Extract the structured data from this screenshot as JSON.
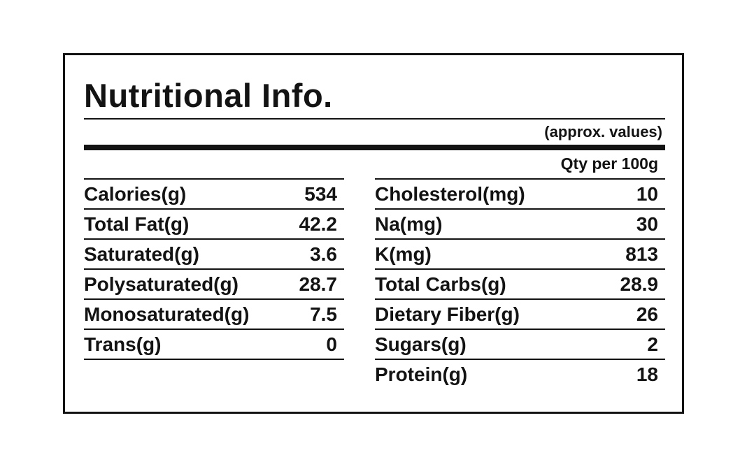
{
  "label": {
    "title": "Nutritional Info.",
    "approx_note": "(approx. values)",
    "qty_header": "Qty per 100g",
    "columns": {
      "left": [
        {
          "name": "Calories(g)",
          "value": "534"
        },
        {
          "name": "Total Fat(g)",
          "value": "42.2"
        },
        {
          "name": "Saturated(g)",
          "value": "3.6"
        },
        {
          "name": "Polysaturated(g)",
          "value": "28.7"
        },
        {
          "name": "Monosaturated(g)",
          "value": "7.5"
        },
        {
          "name": "Trans(g)",
          "value": "0"
        }
      ],
      "right": [
        {
          "name": "Cholesterol(mg)",
          "value": "10"
        },
        {
          "name": "Na(mg)",
          "value": "30"
        },
        {
          "name": "K(mg)",
          "value": "813"
        },
        {
          "name": "Total Carbs(g)",
          "value": "28.9"
        },
        {
          "name": "Dietary Fiber(g)",
          "value": "26"
        },
        {
          "name": "Sugars(g)",
          "value": "2"
        },
        {
          "name": "Protein(g)",
          "value": "18"
        }
      ]
    },
    "colors": {
      "ink": "#131313",
      "background": "#ffffff"
    }
  }
}
